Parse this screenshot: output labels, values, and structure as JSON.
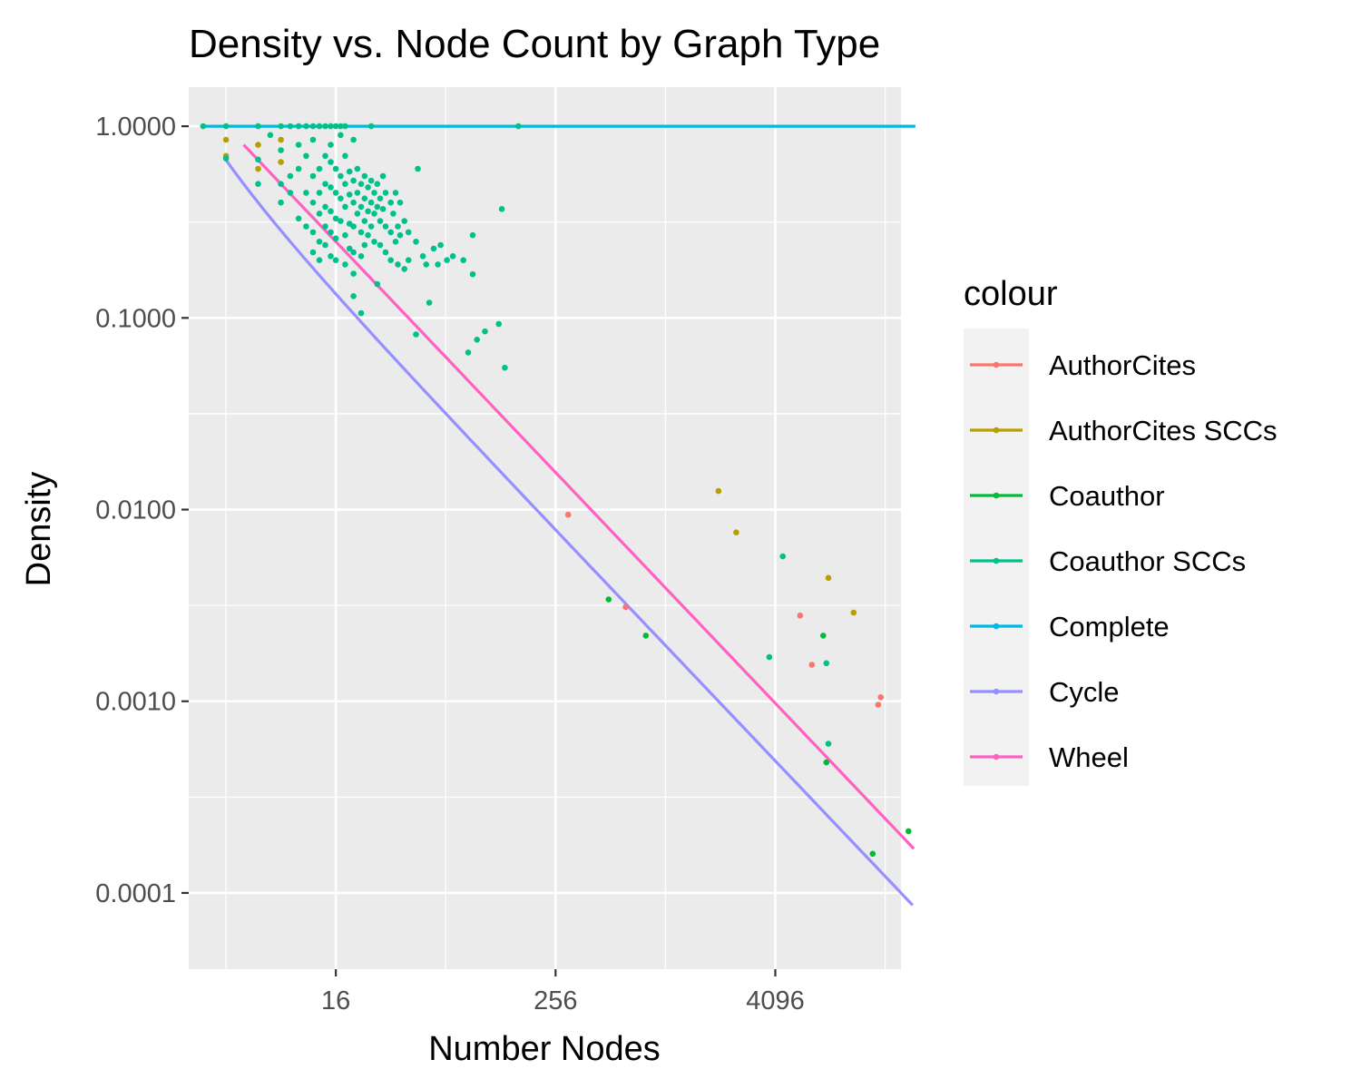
{
  "chart_data": {
    "type": "scatter",
    "title": "Density vs. Node Count by Graph Type",
    "xlabel": "Number Nodes",
    "ylabel": "Density",
    "x_scale": "log",
    "y_scale": "log",
    "xlim": [
      2.5,
      20000
    ],
    "ylim": [
      4e-05,
      1.6
    ],
    "x_ticks": [
      16,
      256,
      4096
    ],
    "x_tick_labels": [
      "16",
      "256",
      "4096"
    ],
    "y_ticks": [
      0.0001,
      0.001,
      0.01,
      0.1,
      1
    ],
    "y_tick_labels": [
      "0.0001",
      "0.0010",
      "0.0100",
      "0.1000",
      "1.0000"
    ],
    "grid": true,
    "legend": {
      "title": "colour",
      "position": "right"
    },
    "series": [
      {
        "name": "AuthorCites",
        "color": "#F8766D",
        "mode": "points",
        "points": [
          [
            300,
            0.0094
          ],
          [
            620,
            0.0031
          ],
          [
            5600,
            0.0028
          ],
          [
            6500,
            0.00155
          ],
          [
            15000,
            0.00096
          ],
          [
            15500,
            0.00105
          ]
        ]
      },
      {
        "name": "AuthorCites SCCs",
        "color": "#B79F00",
        "mode": "points",
        "points": [
          [
            4,
            0.85
          ],
          [
            4,
            0.7
          ],
          [
            6,
            0.6
          ],
          [
            6,
            0.8
          ],
          [
            8,
            0.65
          ],
          [
            8,
            0.85
          ],
          [
            2000,
            0.0125
          ],
          [
            2500,
            0.0076
          ],
          [
            8000,
            0.0044
          ],
          [
            11000,
            0.0029
          ]
        ]
      },
      {
        "name": "Coauthor",
        "color": "#00BA38",
        "mode": "points",
        "points": [
          [
            500,
            0.0034
          ],
          [
            800,
            0.0022
          ],
          [
            7500,
            0.0022
          ],
          [
            7800,
            0.00048
          ],
          [
            14000,
            0.00016
          ],
          [
            22000,
            0.00021
          ]
        ]
      },
      {
        "name": "Coauthor SCCs",
        "color": "#00C08B",
        "mode": "points",
        "points": [
          [
            3,
            1.0
          ],
          [
            4,
            1.0
          ],
          [
            6,
            1.0
          ],
          [
            8,
            1.0
          ],
          [
            9,
            1.0
          ],
          [
            10,
            1.0
          ],
          [
            11,
            1.0
          ],
          [
            12,
            1.0
          ],
          [
            13,
            1.0
          ],
          [
            14,
            1.0
          ],
          [
            15,
            1.0
          ],
          [
            16,
            1.0
          ],
          [
            17,
            1.0
          ],
          [
            18,
            1.0
          ],
          [
            25,
            1.0
          ],
          [
            160,
            1.0
          ],
          [
            4,
            0.68
          ],
          [
            6,
            0.5
          ],
          [
            6,
            0.67
          ],
          [
            7,
            0.9
          ],
          [
            8,
            0.5
          ],
          [
            8,
            0.4
          ],
          [
            8,
            0.75
          ],
          [
            9,
            0.55
          ],
          [
            9,
            0.45
          ],
          [
            10,
            0.6
          ],
          [
            10,
            0.33
          ],
          [
            10,
            0.8
          ],
          [
            11,
            0.45
          ],
          [
            11,
            0.3
          ],
          [
            11,
            0.7
          ],
          [
            12,
            0.55
          ],
          [
            12,
            0.4
          ],
          [
            12,
            0.28
          ],
          [
            12,
            0.22
          ],
          [
            12,
            0.85
          ],
          [
            13,
            0.6
          ],
          [
            13,
            0.45
          ],
          [
            13,
            0.35
          ],
          [
            13,
            0.25
          ],
          [
            13,
            0.2
          ],
          [
            14,
            0.7
          ],
          [
            14,
            0.5
          ],
          [
            14,
            0.38
          ],
          [
            14,
            0.3
          ],
          [
            14,
            0.24
          ],
          [
            15,
            0.65
          ],
          [
            15,
            0.48
          ],
          [
            15,
            0.36
          ],
          [
            15,
            0.28
          ],
          [
            15,
            0.21
          ],
          [
            15,
            0.8
          ],
          [
            16,
            0.6
          ],
          [
            16,
            0.45
          ],
          [
            16,
            0.33
          ],
          [
            16,
            0.26
          ],
          [
            16,
            0.2
          ],
          [
            17,
            0.55
          ],
          [
            17,
            0.42
          ],
          [
            17,
            0.32
          ],
          [
            17,
            0.9
          ],
          [
            18,
            0.5
          ],
          [
            18,
            0.38
          ],
          [
            18,
            0.27
          ],
          [
            18,
            0.19
          ],
          [
            18,
            0.7
          ],
          [
            19,
            0.58
          ],
          [
            19,
            0.44
          ],
          [
            19,
            0.31
          ],
          [
            19,
            0.23
          ],
          [
            20,
            0.52
          ],
          [
            20,
            0.4
          ],
          [
            20,
            0.3
          ],
          [
            20,
            0.22
          ],
          [
            20,
            0.17
          ],
          [
            20,
            0.85
          ],
          [
            21,
            0.6
          ],
          [
            21,
            0.45
          ],
          [
            21,
            0.35
          ],
          [
            22,
            0.5
          ],
          [
            22,
            0.38
          ],
          [
            22,
            0.28
          ],
          [
            22,
            0.21
          ],
          [
            23,
            0.55
          ],
          [
            23,
            0.42
          ],
          [
            23,
            0.32
          ],
          [
            23,
            0.24
          ],
          [
            24,
            0.48
          ],
          [
            24,
            0.36
          ],
          [
            24,
            0.27
          ],
          [
            25,
            0.52
          ],
          [
            25,
            0.4
          ],
          [
            25,
            0.3
          ],
          [
            26,
            0.45
          ],
          [
            26,
            0.35
          ],
          [
            26,
            0.25
          ],
          [
            27,
            0.5
          ],
          [
            27,
            0.38
          ],
          [
            27,
            0.15
          ],
          [
            28,
            0.42
          ],
          [
            28,
            0.32
          ],
          [
            28,
            0.24
          ],
          [
            29,
            0.55
          ],
          [
            29,
            0.37
          ],
          [
            30,
            0.45
          ],
          [
            30,
            0.3
          ],
          [
            30,
            0.22
          ],
          [
            32,
            0.4
          ],
          [
            32,
            0.28
          ],
          [
            32,
            0.2
          ],
          [
            33,
            0.35
          ],
          [
            34,
            0.45
          ],
          [
            34,
            0.25
          ],
          [
            35,
            0.3
          ],
          [
            36,
            0.4
          ],
          [
            36,
            0.27
          ],
          [
            38,
            0.32
          ],
          [
            38,
            0.18
          ],
          [
            20,
            0.13
          ],
          [
            22,
            0.106
          ],
          [
            35,
            0.19
          ],
          [
            40,
            0.28
          ],
          [
            40,
            0.2
          ],
          [
            44,
            0.25
          ],
          [
            44,
            0.082
          ],
          [
            45,
            0.6
          ],
          [
            48,
            0.21
          ],
          [
            50,
            0.19
          ],
          [
            52,
            0.12
          ],
          [
            55,
            0.23
          ],
          [
            58,
            0.19
          ],
          [
            60,
            0.24
          ],
          [
            65,
            0.2
          ],
          [
            70,
            0.21
          ],
          [
            80,
            0.2
          ],
          [
            85,
            0.066
          ],
          [
            90,
            0.27
          ],
          [
            90,
            0.169
          ],
          [
            95,
            0.077
          ],
          [
            105,
            0.085
          ],
          [
            125,
            0.093
          ],
          [
            130,
            0.37
          ],
          [
            135,
            0.055
          ],
          [
            3800,
            0.0017
          ],
          [
            4500,
            0.0057
          ],
          [
            7800,
            0.00158
          ],
          [
            8000,
            0.0006
          ]
        ]
      },
      {
        "name": "Complete",
        "color": "#00B9E3",
        "mode": "line",
        "line": [
          [
            3,
            1.0
          ],
          [
            24000,
            1.0
          ]
        ]
      },
      {
        "name": "Cycle",
        "color": "#9590FF",
        "mode": "line",
        "line": "cycle"
      },
      {
        "name": "Wheel",
        "color": "#FF61C3",
        "mode": "line",
        "line": "wheel"
      }
    ]
  }
}
